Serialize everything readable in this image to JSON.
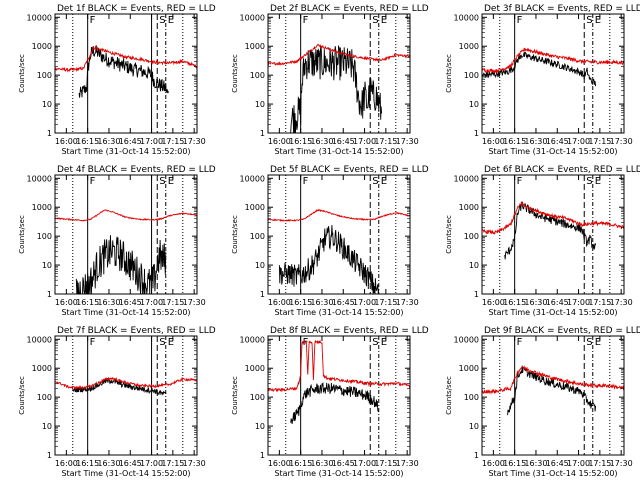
{
  "figure": {
    "colors": {
      "events": "#000000",
      "lld": "#e00000",
      "axes": "#000000"
    },
    "ylabel": "Counts/sec",
    "xlabel": "Start Time (31-Oct-14 15:52:00)",
    "xticks": [
      "16:00",
      "16:15",
      "16:30",
      "16:45",
      "17:00",
      "17:15",
      "17:30"
    ],
    "yticks": [
      "1",
      "10",
      "100",
      "1000",
      "10000"
    ]
  },
  "chart_data": [
    {
      "type": "line",
      "title": "Det 1f BLACK = Events, RED = LLD",
      "x_unit": "minutes since 15:52",
      "xlim": [
        0,
        100
      ],
      "ylim": [
        1,
        13000
      ],
      "yscale": "log",
      "markers": [
        {
          "label": "",
          "x": 12.5,
          "style": "dotted"
        },
        {
          "label": "F",
          "x": 23,
          "style": "solid"
        },
        {
          "label": "",
          "x": 68,
          "style": "solid"
        },
        {
          "label": "S",
          "x": 72,
          "style": "dashed"
        },
        {
          "label": "E",
          "x": 78,
          "style": "dashdot"
        },
        {
          "label": "",
          "x": 90,
          "style": "dotted"
        }
      ],
      "series": [
        {
          "name": "Events",
          "color": "#000000",
          "noise": 0.25,
          "x": [
            17,
            20,
            22.5,
            23,
            25,
            27,
            30,
            35,
            40,
            45,
            50,
            55,
            60,
            65,
            68,
            70,
            72,
            74,
            76,
            78,
            79,
            80
          ],
          "y": [
            20,
            28,
            40,
            150,
            500,
            700,
            600,
            380,
            300,
            240,
            200,
            160,
            140,
            120,
            100,
            60,
            55,
            45,
            40,
            35,
            25,
            20
          ]
        },
        {
          "name": "LLD",
          "color": "#e00000",
          "noise": 0.05,
          "x": [
            0,
            10,
            20,
            24,
            27,
            30,
            40,
            50,
            60,
            70,
            80,
            90,
            100
          ],
          "y": [
            170,
            150,
            170,
            420,
            900,
            830,
            580,
            420,
            360,
            280,
            260,
            300,
            200
          ]
        }
      ]
    },
    {
      "type": "line",
      "title": "Det 2f BLACK = Events, RED = LLD",
      "x_unit": "minutes since 15:52",
      "xlim": [
        0,
        100
      ],
      "ylim": [
        1,
        13000
      ],
      "yscale": "log",
      "markers": [
        {
          "label": "",
          "x": 12.5,
          "style": "dotted"
        },
        {
          "label": "F",
          "x": 23,
          "style": "solid"
        },
        {
          "label": "S",
          "x": 72,
          "style": "dashed"
        },
        {
          "label": "E",
          "x": 78,
          "style": "dashdot"
        },
        {
          "label": "",
          "x": 90,
          "style": "dotted"
        }
      ],
      "series": [
        {
          "name": "Events",
          "color": "#000000",
          "noise": 0.6,
          "x": [
            16,
            20,
            23,
            24,
            26,
            28,
            35,
            45,
            55,
            60,
            62,
            64,
            66,
            68,
            70,
            72,
            74,
            76,
            78,
            80
          ],
          "y": [
            3,
            4,
            6,
            60,
            250,
            280,
            270,
            260,
            250,
            200,
            60,
            15,
            8,
            20,
            10,
            30,
            18,
            20,
            10,
            5
          ]
        },
        {
          "name": "LLD",
          "color": "#e00000",
          "noise": 0.04,
          "x": [
            0,
            10,
            20,
            25,
            30,
            35,
            40,
            50,
            60,
            70,
            80,
            90,
            100
          ],
          "y": [
            250,
            250,
            300,
            450,
            700,
            1100,
            900,
            600,
            450,
            380,
            330,
            500,
            450
          ]
        }
      ]
    },
    {
      "type": "line",
      "title": "Det 3f BLACK = Events, RED = LLD",
      "x_unit": "minutes since 15:52",
      "xlim": [
        0,
        100
      ],
      "ylim": [
        1,
        13000
      ],
      "yscale": "log",
      "markers": [
        {
          "label": "",
          "x": 12.5,
          "style": "dotted"
        },
        {
          "label": "F",
          "x": 23,
          "style": "solid"
        },
        {
          "label": "S",
          "x": 72,
          "style": "dashed"
        },
        {
          "label": "E",
          "x": 78,
          "style": "dashdot"
        },
        {
          "label": "",
          "x": 90,
          "style": "dotted"
        }
      ],
      "series": [
        {
          "name": "Events",
          "color": "#000000",
          "noise": 0.12,
          "x": [
            0,
            10,
            18,
            22,
            25,
            28,
            30,
            40,
            50,
            60,
            70,
            72,
            74,
            76,
            78,
            80
          ],
          "y": [
            100,
            110,
            130,
            170,
            330,
            500,
            480,
            350,
            260,
            180,
            120,
            90,
            140,
            70,
            60,
            50
          ]
        },
        {
          "name": "LLD",
          "color": "#e00000",
          "noise": 0.06,
          "x": [
            0,
            10,
            20,
            25,
            30,
            40,
            50,
            60,
            70,
            80,
            90,
            100
          ],
          "y": [
            150,
            140,
            200,
            450,
            800,
            600,
            450,
            380,
            300,
            280,
            280,
            270
          ]
        }
      ]
    },
    {
      "type": "line",
      "title": "Det 4f BLACK = Events, RED = LLD",
      "x_unit": "minutes since 15:52",
      "xlim": [
        0,
        100
      ],
      "ylim": [
        1,
        13000
      ],
      "yscale": "log",
      "markers": [
        {
          "label": "",
          "x": 12.5,
          "style": "dotted"
        },
        {
          "label": "F",
          "x": 23,
          "style": "solid"
        },
        {
          "label": "",
          "x": 68,
          "style": "solid"
        },
        {
          "label": "S",
          "x": 72,
          "style": "dashed"
        },
        {
          "label": "E",
          "x": 78,
          "style": "dashdot"
        },
        {
          "label": "",
          "x": 90,
          "style": "dotted"
        }
      ],
      "series": [
        {
          "name": "Events",
          "color": "#000000",
          "noise": 0.6,
          "x": [
            15,
            20,
            24,
            27,
            30,
            35,
            40,
            45,
            50,
            55,
            60,
            65,
            70,
            72,
            74,
            76,
            78
          ],
          "y": [
            1.2,
            1.5,
            2,
            4,
            10,
            20,
            30,
            25,
            15,
            8,
            4,
            2,
            3,
            12,
            20,
            15,
            18
          ]
        },
        {
          "name": "LLD",
          "color": "#e00000",
          "noise": 0.02,
          "x": [
            0,
            10,
            20,
            25,
            30,
            35,
            40,
            50,
            60,
            70,
            75,
            80,
            90,
            100
          ],
          "y": [
            420,
            380,
            350,
            380,
            550,
            800,
            700,
            450,
            380,
            370,
            400,
            500,
            620,
            550
          ]
        }
      ]
    },
    {
      "type": "line",
      "title": "Det 5f BLACK = Events, RED = LLD",
      "x_unit": "minutes since 15:52",
      "xlim": [
        0,
        100
      ],
      "ylim": [
        1,
        13000
      ],
      "yscale": "log",
      "markers": [
        {
          "label": "",
          "x": 12.5,
          "style": "dotted"
        },
        {
          "label": "F",
          "x": 23,
          "style": "solid"
        },
        {
          "label": "S",
          "x": 72,
          "style": "dashed"
        },
        {
          "label": "E",
          "x": 78,
          "style": "dashdot"
        },
        {
          "label": "",
          "x": 90,
          "style": "dotted"
        }
      ],
      "series": [
        {
          "name": "Events",
          "color": "#000000",
          "noise": 0.4,
          "x": [
            8,
            15,
            20,
            25,
            30,
            35,
            40,
            45,
            50,
            55,
            60,
            65,
            70,
            72,
            74,
            76,
            78
          ],
          "y": [
            5,
            5,
            4,
            5,
            8,
            20,
            80,
            100,
            60,
            30,
            15,
            8,
            4,
            3,
            2,
            1.5,
            1.2
          ]
        },
        {
          "name": "LLD",
          "color": "#e00000",
          "noise": 0.02,
          "x": [
            0,
            10,
            20,
            25,
            30,
            35,
            40,
            50,
            60,
            70,
            75,
            80,
            90,
            100
          ],
          "y": [
            380,
            350,
            350,
            380,
            550,
            800,
            720,
            500,
            400,
            370,
            380,
            480,
            650,
            500
          ]
        }
      ]
    },
    {
      "type": "line",
      "title": "Det 6f BLACK = Events, RED = LLD",
      "x_unit": "minutes since 15:52",
      "xlim": [
        0,
        100
      ],
      "ylim": [
        1,
        13000
      ],
      "yscale": "log",
      "markers": [
        {
          "label": "",
          "x": 12.5,
          "style": "dotted"
        },
        {
          "label": "F",
          "x": 23,
          "style": "solid"
        },
        {
          "label": "S",
          "x": 72,
          "style": "dashed"
        },
        {
          "label": "E",
          "x": 78,
          "style": "dashdot"
        },
        {
          "label": "",
          "x": 90,
          "style": "dotted"
        }
      ],
      "series": [
        {
          "name": "Events",
          "color": "#000000",
          "noise": 0.15,
          "x": [
            16,
            20,
            23,
            25,
            28,
            30,
            40,
            50,
            60,
            70,
            72,
            74,
            76,
            78,
            80
          ],
          "y": [
            20,
            35,
            80,
            600,
            1200,
            1000,
            500,
            350,
            250,
            180,
            100,
            60,
            80,
            50,
            40
          ]
        },
        {
          "name": "LLD",
          "color": "#e00000",
          "noise": 0.06,
          "x": [
            0,
            10,
            15,
            20,
            25,
            28,
            30,
            40,
            50,
            60,
            70,
            80,
            90,
            100
          ],
          "y": [
            150,
            130,
            180,
            250,
            900,
            1400,
            1100,
            700,
            500,
            400,
            250,
            280,
            260,
            200
          ]
        }
      ]
    },
    {
      "type": "line",
      "title": "Det 7f BLACK = Events, RED = LLD",
      "x_unit": "minutes since 15:52",
      "xlim": [
        0,
        100
      ],
      "ylim": [
        1,
        13000
      ],
      "yscale": "log",
      "markers": [
        {
          "label": "",
          "x": 12.5,
          "style": "dotted"
        },
        {
          "label": "F",
          "x": 23,
          "style": "solid"
        },
        {
          "label": "",
          "x": 68,
          "style": "solid"
        },
        {
          "label": "S",
          "x": 72,
          "style": "dashed"
        },
        {
          "label": "E",
          "x": 78,
          "style": "dashdot"
        },
        {
          "label": "",
          "x": 90,
          "style": "dotted"
        }
      ],
      "series": [
        {
          "name": "Events",
          "color": "#000000",
          "noise": 0.1,
          "x": [
            12,
            15,
            20,
            25,
            30,
            35,
            40,
            45,
            50,
            55,
            60,
            65,
            70,
            72,
            74,
            76,
            78
          ],
          "y": [
            170,
            180,
            190,
            200,
            260,
            350,
            380,
            300,
            250,
            220,
            200,
            180,
            170,
            150,
            140,
            130,
            120
          ]
        },
        {
          "name": "LLD",
          "color": "#e00000",
          "noise": 0.04,
          "x": [
            0,
            10,
            20,
            25,
            30,
            35,
            40,
            50,
            60,
            70,
            80,
            90,
            100
          ],
          "y": [
            350,
            220,
            210,
            240,
            300,
            400,
            450,
            320,
            250,
            240,
            270,
            420,
            380
          ]
        }
      ]
    },
    {
      "type": "line",
      "title": "Det 8f BLACK = Events, RED = LLD",
      "x_unit": "minutes since 15:52",
      "xlim": [
        0,
        100
      ],
      "ylim": [
        1,
        13000
      ],
      "yscale": "log",
      "markers": [
        {
          "label": "",
          "x": 12.5,
          "style": "dotted"
        },
        {
          "label": "F",
          "x": 23,
          "style": "solid"
        },
        {
          "label": "S",
          "x": 72,
          "style": "dashed"
        },
        {
          "label": "E",
          "x": 78,
          "style": "dashdot"
        },
        {
          "label": "",
          "x": 90,
          "style": "dotted"
        }
      ],
      "series": [
        {
          "name": "Events",
          "color": "#000000",
          "noise": 0.2,
          "x": [
            16,
            20,
            22,
            24,
            26,
            28,
            30,
            35,
            40,
            45,
            50,
            60,
            70,
            72,
            74,
            76,
            78
          ],
          "y": [
            15,
            25,
            35,
            80,
            120,
            150,
            160,
            200,
            200,
            200,
            180,
            150,
            110,
            90,
            80,
            60,
            40
          ]
        },
        {
          "name": "LLD",
          "color": "#e00000",
          "noise": 0.05,
          "x": [
            0,
            10,
            20,
            22,
            23,
            24,
            27,
            28,
            29,
            31,
            32,
            33,
            35,
            38,
            39,
            40,
            42,
            50,
            60,
            70,
            80,
            90,
            100
          ],
          "y": [
            180,
            180,
            200,
            350,
            600,
            8000,
            8000,
            600,
            8000,
            8000,
            400,
            8000,
            8000,
            8000,
            600,
            500,
            450,
            400,
            350,
            300,
            280,
            300,
            250
          ]
        }
      ]
    },
    {
      "type": "line",
      "title": "Det 9f BLACK = Events, RED = LLD",
      "x_unit": "minutes since 15:52",
      "xlim": [
        0,
        100
      ],
      "ylim": [
        1,
        13000
      ],
      "yscale": "log",
      "markers": [
        {
          "label": "",
          "x": 12.5,
          "style": "dotted"
        },
        {
          "label": "F",
          "x": 23,
          "style": "solid"
        },
        {
          "label": "S",
          "x": 72,
          "style": "dashed"
        },
        {
          "label": "E",
          "x": 78,
          "style": "dashdot"
        },
        {
          "label": "",
          "x": 90,
          "style": "dotted"
        }
      ],
      "series": [
        {
          "name": "Events",
          "color": "#000000",
          "noise": 0.15,
          "x": [
            18,
            20,
            23,
            25,
            28,
            30,
            40,
            50,
            60,
            70,
            72,
            74,
            76,
            78,
            80
          ],
          "y": [
            30,
            50,
            100,
            500,
            900,
            800,
            450,
            300,
            220,
            150,
            100,
            80,
            60,
            50,
            40
          ]
        },
        {
          "name": "LLD",
          "color": "#e00000",
          "noise": 0.06,
          "x": [
            0,
            10,
            20,
            25,
            28,
            30,
            40,
            50,
            60,
            70,
            80,
            90,
            100
          ],
          "y": [
            150,
            160,
            200,
            700,
            1100,
            1000,
            650,
            450,
            350,
            280,
            250,
            250,
            200
          ]
        }
      ]
    }
  ]
}
